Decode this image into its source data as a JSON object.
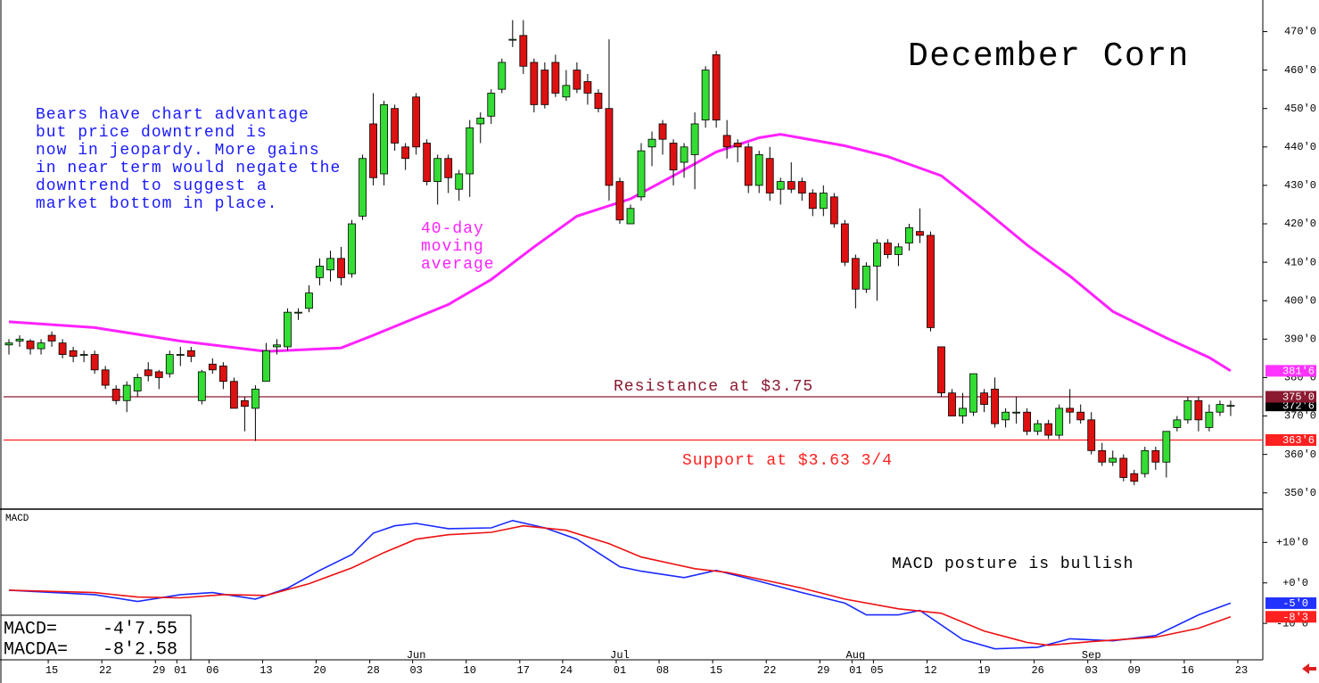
{
  "chart_data": [
    {
      "type": "candlestick",
      "title": "December Corn",
      "x": [
        0,
        1,
        2,
        3,
        4,
        5,
        6,
        7,
        8,
        9,
        10,
        11,
        12,
        13,
        14,
        15,
        16,
        17,
        18,
        19,
        20,
        21,
        22,
        23,
        24,
        25,
        26,
        27,
        28,
        29,
        30,
        31,
        32,
        33,
        34,
        35,
        36,
        37,
        38,
        39,
        40,
        41,
        42,
        43,
        44,
        45,
        46,
        47,
        48,
        49,
        50,
        51,
        52,
        53,
        54,
        55,
        56,
        57,
        58,
        59,
        60,
        61,
        62,
        63,
        64,
        65,
        66,
        67,
        68,
        69,
        70,
        71,
        72,
        73,
        74,
        75,
        76,
        77,
        78,
        79,
        80,
        81,
        82,
        83,
        84,
        85,
        86,
        87,
        88,
        89,
        90,
        91,
        92,
        93,
        94,
        95,
        96,
        97,
        98,
        99,
        100,
        101,
        102,
        103,
        104,
        105,
        106,
        107,
        108,
        109,
        110,
        111,
        112,
        113,
        114
      ],
      "open": [
        388.5,
        389.5,
        389.5,
        387.5,
        391,
        389,
        387,
        386,
        386,
        382,
        377,
        374,
        376.5,
        382,
        381.5,
        381,
        386,
        387,
        374,
        383.5,
        383,
        379,
        374,
        372,
        379,
        388,
        388,
        397,
        398,
        406,
        408,
        411,
        407,
        422,
        446,
        433,
        450,
        440,
        453,
        441,
        431,
        437,
        429,
        433,
        446,
        448,
        455,
        468,
        469,
        462,
        460,
        462,
        453,
        460,
        457,
        454,
        450,
        431,
        420,
        427,
        440,
        446,
        441,
        436,
        438,
        447,
        464,
        443,
        441,
        440,
        430,
        437,
        429,
        431,
        431,
        428,
        424,
        427,
        420,
        411,
        403,
        409,
        415,
        412,
        415,
        418,
        417,
        388,
        376,
        370,
        371,
        376,
        377,
        369,
        371,
        371,
        366,
        368,
        365,
        372,
        371,
        369,
        361,
        358,
        359,
        355,
        355,
        361,
        358,
        367,
        369,
        374,
        367,
        371,
        372.75
      ],
      "high": [
        390,
        391,
        390,
        390,
        392,
        390,
        388,
        387,
        387,
        383,
        378,
        379,
        381,
        384,
        382,
        387,
        388,
        388,
        382,
        385,
        384,
        380,
        375,
        378,
        389,
        390,
        398,
        398,
        404,
        411,
        413,
        414,
        421,
        438,
        454,
        452,
        451,
        441,
        454,
        442,
        438,
        438,
        434,
        447,
        449,
        455,
        463,
        473,
        473,
        463,
        462,
        464,
        460,
        462,
        459,
        455,
        468,
        432,
        425,
        441,
        444,
        447,
        442,
        441,
        449,
        461,
        465,
        447,
        442,
        441,
        439,
        440,
        432,
        436,
        432,
        429,
        430,
        428,
        421,
        412,
        410,
        416,
        416,
        415,
        420,
        424,
        418,
        388,
        377,
        376,
        381,
        377,
        380,
        372,
        375,
        372,
        369,
        369,
        373,
        377,
        373,
        371,
        363,
        361,
        360,
        356,
        362,
        362,
        366,
        370,
        375,
        375,
        373,
        374,
        374
      ],
      "low": [
        386,
        388,
        386,
        386,
        388,
        385,
        384,
        384,
        381,
        377,
        373,
        371,
        375,
        379,
        377,
        380,
        383,
        384,
        373,
        381,
        377,
        372,
        366,
        363.5,
        379,
        386,
        387,
        395,
        397,
        404,
        405,
        404,
        406,
        421,
        430,
        430,
        439,
        434,
        438,
        430,
        425,
        428,
        426,
        427,
        441,
        446,
        454,
        466,
        459,
        449,
        450,
        453,
        452,
        454,
        451,
        449,
        426,
        420,
        420,
        426,
        435,
        438,
        430,
        432,
        429,
        445,
        445,
        437,
        436,
        428,
        428,
        426,
        425,
        428,
        426,
        422,
        422,
        419,
        409,
        398,
        402,
        400,
        411,
        409,
        413,
        415,
        392,
        375,
        370,
        368,
        370,
        371,
        367,
        367,
        368,
        365,
        365,
        364,
        364,
        368,
        368,
        360,
        357,
        357,
        353,
        352,
        354,
        356,
        354,
        366,
        368,
        366,
        366,
        370,
        370
      ],
      "close": [
        389,
        390,
        387.5,
        389,
        389.5,
        386,
        385.5,
        386,
        382,
        378,
        374,
        378,
        380,
        380.5,
        380,
        386,
        386,
        385.5,
        381.5,
        382,
        379,
        372,
        372.5,
        377,
        387,
        388.5,
        397,
        397,
        402,
        409,
        411,
        406,
        420,
        437,
        432,
        451,
        441,
        437,
        440,
        431,
        437,
        432,
        433,
        445,
        447.5,
        454,
        462,
        468,
        461,
        451,
        451,
        454,
        456,
        455,
        454,
        450,
        430,
        421,
        424,
        439,
        442,
        442,
        434,
        440,
        446,
        460,
        447,
        440,
        440,
        430,
        438,
        428,
        431,
        429,
        428,
        424,
        428,
        420,
        410,
        403,
        409,
        415,
        412,
        414,
        419,
        417,
        393,
        376,
        370,
        372,
        381,
        373,
        368,
        371,
        371,
        366,
        368,
        365,
        372,
        371,
        369,
        361,
        358,
        359,
        354,
        353,
        361,
        358,
        366,
        369,
        374,
        369,
        371,
        373,
        372.75
      ],
      "colors": {
        "up": "#33dd33",
        "down": "#dd1111"
      },
      "ma": {
        "x": [
          0,
          8,
          16,
          24,
          31,
          34,
          41,
          45,
          49,
          53,
          58,
          62,
          66,
          70,
          72,
          78,
          82,
          87,
          91,
          95,
          99,
          103,
          108,
          112,
          114
        ],
        "values": [
          394.5,
          393,
          389.5,
          386.8,
          387.7,
          391,
          399,
          405.5,
          414,
          422,
          426.5,
          432.5,
          438.7,
          442.4,
          443.3,
          440.3,
          437.5,
          432.5,
          423.7,
          414.5,
          406.4,
          397.2,
          390.3,
          385.2,
          381.75
        ],
        "color": "#ff22ff"
      },
      "levels": [
        {
          "value": 375,
          "label": "375'0",
          "color": "#8b1a30",
          "annotation": "Resistance at $3.75"
        },
        {
          "value": 363.75,
          "label": "363'6",
          "color": "#ff2020",
          "annotation": "Support at $3.63 3/4"
        }
      ],
      "tags": [
        {
          "value": 381.75,
          "label": "381'6",
          "color": "#ff33ff"
        },
        {
          "value": 372.75,
          "label": "372'6",
          "color": "#000000"
        }
      ],
      "annotations": [
        {
          "lines": [
            "Bears have chart advantage",
            "but price downtrend is",
            "now in jeopardy. More gains",
            "in near term would negate the",
            "downtrend to suggest a",
            "market bottom in place."
          ],
          "color": "#1a1aff"
        },
        {
          "lines": [
            "40-day",
            "moving",
            "average"
          ],
          "color": "#ff22ff"
        }
      ],
      "xlim": [
        -0.5,
        117
      ],
      "ylim": [
        346,
        478
      ],
      "yticks": [
        {
          "value": 350,
          "label": "350'0"
        },
        {
          "value": 360,
          "label": "360'0"
        },
        {
          "value": 370,
          "label": "370'0"
        },
        {
          "value": 380,
          "label": "380'0"
        },
        {
          "value": 390,
          "label": "390'0"
        },
        {
          "value": 400,
          "label": "400'0"
        },
        {
          "value": 410,
          "label": "410'0"
        },
        {
          "value": 420,
          "label": "420'0"
        },
        {
          "value": 430,
          "label": "430'0"
        },
        {
          "value": 440,
          "label": "440'0"
        },
        {
          "value": 450,
          "label": "450'0"
        },
        {
          "value": 460,
          "label": "460'0"
        },
        {
          "value": 470,
          "label": "470'0"
        }
      ]
    },
    {
      "type": "line",
      "title": "MACD",
      "series": [
        {
          "color": "#1a2aff",
          "x": [
            0,
            8,
            12,
            16,
            19,
            23,
            26,
            29,
            32,
            34,
            36,
            38,
            41,
            45,
            47,
            50,
            53,
            57,
            59,
            63,
            66,
            70,
            74,
            78,
            80,
            83,
            85,
            89,
            92,
            96,
            99,
            103,
            107,
            111,
            114
          ],
          "values": [
            -1.8,
            -2.9,
            -4.6,
            -2.9,
            -2.4,
            -4,
            -1.3,
            3.1,
            7,
            12.3,
            14.1,
            14.7,
            13.4,
            13.6,
            15.4,
            13.6,
            10.8,
            4,
            2.9,
            1.3,
            3.1,
            0.4,
            -2.4,
            -5,
            -7.9,
            -7.9,
            -6.8,
            -14,
            -16.3,
            -15.9,
            -13.8,
            -14.3,
            -13,
            -7.9,
            -5
          ]
        },
        {
          "color": "#ee1111",
          "x": [
            0,
            8,
            12,
            16,
            20,
            24,
            28,
            32,
            35,
            38,
            41,
            45,
            48,
            52,
            56,
            59,
            64,
            67,
            71,
            74,
            78,
            83,
            87,
            91,
            95,
            97,
            101,
            107,
            111,
            114
          ],
          "values": [
            -1.8,
            -2.4,
            -3.5,
            -3.7,
            -2.9,
            -3.1,
            -0.2,
            3.7,
            7.5,
            10.8,
            11.9,
            12.5,
            14.1,
            13,
            9.7,
            6.4,
            3.5,
            2.6,
            0.4,
            -1.3,
            -4,
            -6.4,
            -7.5,
            -11.9,
            -14.7,
            -15.4,
            -14.5,
            -13.4,
            -11.2,
            -8.375
          ]
        }
      ],
      "tags": [
        {
          "value": -5,
          "label": "-5'0",
          "color": "#2233ff"
        },
        {
          "value": -8.375,
          "label": "-8'3",
          "color": "#ff2020"
        }
      ],
      "readouts": [
        {
          "label": "MACD=",
          "text": "-4'7.55"
        },
        {
          "label": "MACDA=",
          "text": "-8'2.58"
        }
      ],
      "annotation": "MACD posture is bullish",
      "xlim": [
        -0.5,
        117
      ],
      "ylim": [
        -19,
        18
      ],
      "yticks": [
        {
          "value": 10,
          "label": "+10'0"
        },
        {
          "value": 0,
          "label": "+0'0"
        },
        {
          "value": -10,
          "label": "-10'0"
        }
      ],
      "xticks": [
        {
          "value": 4,
          "label": "15"
        },
        {
          "value": 9,
          "label": "22"
        },
        {
          "value": 14,
          "label": "29"
        },
        {
          "value": 16,
          "label": "01"
        },
        {
          "value": 19,
          "label": "06"
        },
        {
          "value": 24,
          "label": "13"
        },
        {
          "value": 29,
          "label": "20"
        },
        {
          "value": 34,
          "label": "28"
        },
        {
          "value": 38,
          "label": "03"
        },
        {
          "value": 43,
          "label": "10"
        },
        {
          "value": 48,
          "label": "17"
        },
        {
          "value": 52,
          "label": "24"
        },
        {
          "value": 57,
          "label": "01"
        },
        {
          "value": 61,
          "label": "08"
        },
        {
          "value": 66,
          "label": "15"
        },
        {
          "value": 71,
          "label": "22"
        },
        {
          "value": 76,
          "label": "29"
        },
        {
          "value": 79,
          "label": "01"
        },
        {
          "value": 81,
          "label": "05"
        },
        {
          "value": 86,
          "label": "12"
        },
        {
          "value": 91,
          "label": "19"
        },
        {
          "value": 96,
          "label": "26"
        },
        {
          "value": 101,
          "label": "03"
        },
        {
          "value": 105,
          "label": "09"
        },
        {
          "value": 110,
          "label": "16"
        },
        {
          "value": 115,
          "label": "23"
        }
      ],
      "months": [
        {
          "value": 38,
          "label": "Jun"
        },
        {
          "value": 57,
          "label": "Jul"
        },
        {
          "value": 79,
          "label": "Aug"
        },
        {
          "value": 101,
          "label": "Sep"
        }
      ]
    }
  ]
}
